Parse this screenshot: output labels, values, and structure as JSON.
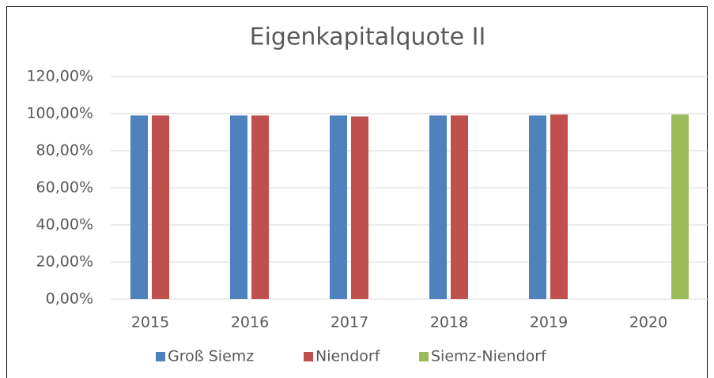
{
  "chart_data": {
    "type": "bar",
    "title": "Eigenkapitalquote II",
    "categories": [
      "2015",
      "2016",
      "2017",
      "2018",
      "2019",
      "2020"
    ],
    "series": [
      {
        "name": "Groß Siemz",
        "color": "#4f81bd",
        "values": [
          99,
          99,
          99,
          99,
          99,
          null
        ]
      },
      {
        "name": "Niendorf",
        "color": "#c0504d",
        "values": [
          99,
          99,
          98.5,
          99,
          99.5,
          null
        ]
      },
      {
        "name": "Siemz-Niendorf",
        "color": "#9bbb59",
        "values": [
          null,
          null,
          null,
          null,
          null,
          99.5
        ]
      }
    ],
    "ylim": [
      0,
      120
    ],
    "yticks": [
      {
        "value": 0,
        "label": "0,00%"
      },
      {
        "value": 20,
        "label": "20,00%"
      },
      {
        "value": 40,
        "label": "40,00%"
      },
      {
        "value": 60,
        "label": "60,00%"
      },
      {
        "value": 80,
        "label": "80,00%"
      },
      {
        "value": 100,
        "label": "100,00%"
      },
      {
        "value": 120,
        "label": "120,00%"
      }
    ],
    "grid": true,
    "legend": "bottom"
  }
}
